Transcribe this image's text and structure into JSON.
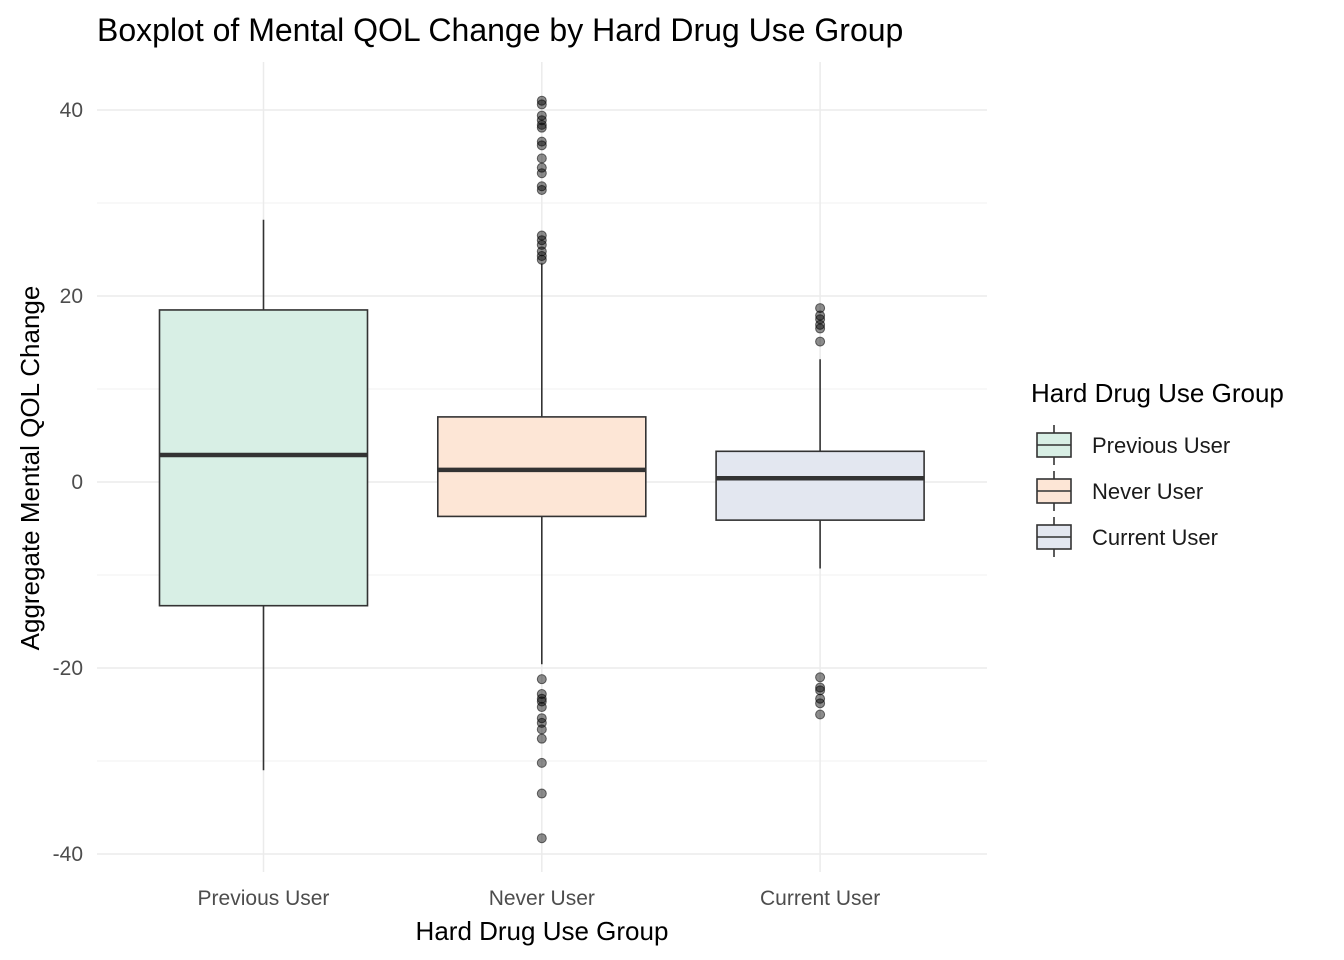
{
  "chart_data": {
    "type": "boxplot",
    "title": "Boxplot of Mental QOL Change by Hard Drug Use Group",
    "xlabel": "Hard Drug Use Group",
    "ylabel": "Aggregate Mental QOL Change",
    "categories": [
      "Previous User",
      "Never User",
      "Current User"
    ],
    "ylim": [
      -42,
      45
    ],
    "yticks": [
      -40,
      -20,
      0,
      20,
      40
    ],
    "grid": true,
    "legend": {
      "title": "Hard Drug Use Group",
      "placement": "right",
      "entries": [
        "Previous User",
        "Never User",
        "Current User"
      ]
    },
    "series": [
      {
        "category": "Previous User",
        "fill": "#d8efe5",
        "whisker_low": -31,
        "q1": -13.3,
        "median": 2.9,
        "q3": 18.5,
        "whisker_high": 28.2,
        "outliers": []
      },
      {
        "category": "Never User",
        "fill": "#fde6d6",
        "whisker_low": -19.6,
        "q1": -3.7,
        "median": 1.3,
        "q3": 7.0,
        "whisker_high": 23.5,
        "outliers": [
          41.0,
          40.6,
          39.4,
          38.9,
          38.4,
          38.1,
          36.6,
          36.2,
          34.8,
          33.8,
          33.2,
          31.8,
          31.4,
          26.5,
          26.0,
          25.5,
          24.8,
          24.3,
          23.9,
          -21.2,
          -22.8,
          -23.3,
          -23.6,
          -24.2,
          -25.4,
          -25.9,
          -26.6,
          -27.6,
          -30.2,
          -33.5,
          -38.3
        ]
      },
      {
        "category": "Current User",
        "fill": "#e3e7f0",
        "whisker_low": -9.3,
        "q1": -4.1,
        "median": 0.4,
        "q3": 3.3,
        "whisker_high": 13.2,
        "outliers": [
          18.7,
          17.9,
          17.5,
          16.9,
          16.5,
          15.1,
          -21.0,
          -22.1,
          -22.4,
          -23.3,
          -23.8,
          -25.0
        ]
      }
    ]
  }
}
